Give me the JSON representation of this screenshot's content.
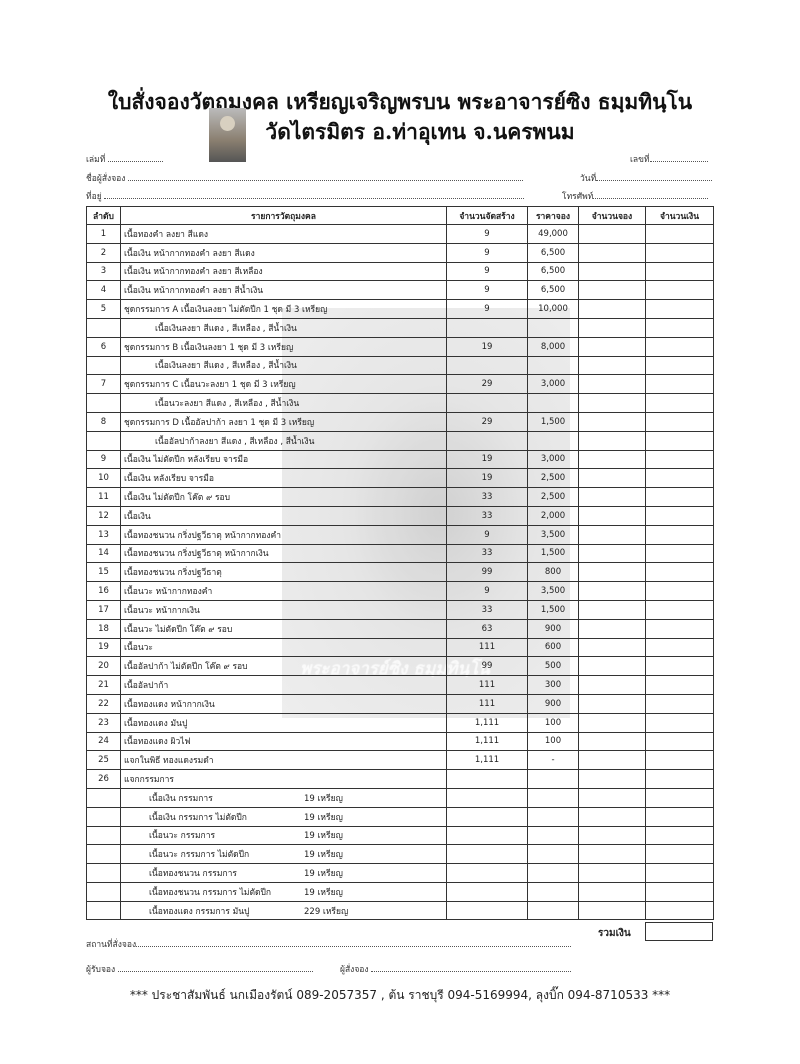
{
  "header": {
    "title_line1": "ใบสั่งจองวัตถุมงคล เหรียญเจริญพรบน พระอาจารย์ซิง ธมฺมทินฺโน",
    "title_line2": "วัดไตรมิตร อ.ท่าอุเทน จ.นครพนม",
    "book_no_label": "เล่มที่",
    "number_label": "เลขที่",
    "orderer_label": "ชื่อผู้สั่งจอง",
    "date_label": "วันที่",
    "address_label": "ที่อยู่",
    "phone_label": "โทรศัพท์"
  },
  "watermark": "พระอาจารย์ซิง ธมฺมทินฺโน",
  "table": {
    "columns": [
      "ลำดับ",
      "รายการวัตถุมงคล",
      "จำนวนจัดสร้าง",
      "ราคาจอง",
      "จำนวนจอง",
      "จำนวนเงิน"
    ],
    "rows": [
      {
        "no": "1",
        "item": "เนื้อทองคำ ลงยา สีแดง",
        "qty": "9",
        "price": "49,000"
      },
      {
        "no": "2",
        "item": "เนื้อเงิน หน้ากากทองคำ ลงยา สีแดง",
        "qty": "9",
        "price": "6,500"
      },
      {
        "no": "3",
        "item": "เนื้อเงิน หน้ากากทองคำ ลงยา สีเหลือง",
        "qty": "9",
        "price": "6,500"
      },
      {
        "no": "4",
        "item": "เนื้อเงิน หน้ากากทองคำ ลงยา สีน้ำเงิน",
        "qty": "9",
        "price": "6,500"
      },
      {
        "no": "5",
        "item": "ชุดกรรมการ A เนื้อเงินลงยา ไม่ตัดปีก 1 ชุด มี 3 เหรียญ",
        "qty": "9",
        "price": "10,000"
      },
      {
        "no": "",
        "item": "เนื้อเงินลงยา สีแดง , สีเหลือง , สีน้ำเงิน",
        "qty": "",
        "price": "",
        "type": "sub"
      },
      {
        "no": "6",
        "item": "ชุดกรรมการ B เนื้อเงินลงยา  1 ชุด มี 3 เหรียญ",
        "qty": "19",
        "price": "8,000"
      },
      {
        "no": "",
        "item": "เนื้อเงินลงยา สีแดง , สีเหลือง , สีน้ำเงิน",
        "qty": "",
        "price": "",
        "type": "sub"
      },
      {
        "no": "7",
        "item": "ชุดกรรมการ C เนื้อนวะลงยา  1 ชุด มี 3 เหรียญ",
        "qty": "29",
        "price": "3,000"
      },
      {
        "no": "",
        "item": "เนื้อนวะลงยา สีแดง , สีเหลือง , สีน้ำเงิน",
        "qty": "",
        "price": "",
        "type": "sub"
      },
      {
        "no": "8",
        "item": "ชุดกรรมการ D เนื้ออัลปาก้า ลงยา 1 ชุด มี 3 เหรียญ",
        "qty": "29",
        "price": "1,500"
      },
      {
        "no": "",
        "item": "เนื้ออัลปาก้าลงยา สีแดง , สีเหลือง , สีน้ำเงิน",
        "qty": "",
        "price": "",
        "type": "sub"
      },
      {
        "no": "9",
        "item": "เนื้อเงิน ไม่ตัดปีก หลังเรียบ จารมือ",
        "qty": "19",
        "price": "3,000"
      },
      {
        "no": "10",
        "item": "เนื้อเงิน หลังเรียบ จารมือ",
        "qty": "19",
        "price": "2,500"
      },
      {
        "no": "11",
        "item": "เนื้อเงิน ไม่ตัดปีก โค๊ต ๙ รอบ",
        "qty": "33",
        "price": "2,500"
      },
      {
        "no": "12",
        "item": "เนื้อเงิน",
        "qty": "33",
        "price": "2,000"
      },
      {
        "no": "13",
        "item": "เนื้อทองชนวน กริ่งปฐวีธาตุ หน้ากากทองคำ",
        "qty": "9",
        "price": "3,500"
      },
      {
        "no": "14",
        "item": "เนื้อทองชนวน กริ่งปฐวีธาตุ หน้ากากเงิน",
        "qty": "33",
        "price": "1,500"
      },
      {
        "no": "15",
        "item": "เนื้อทองชนวน กริ่งปฐวีธาตุ",
        "qty": "99",
        "price": "800"
      },
      {
        "no": "16",
        "item": "เนื้อนวะ หน้ากากทองคำ",
        "qty": "9",
        "price": "3,500"
      },
      {
        "no": "17",
        "item": "เนื้อนวะ หน้ากากเงิน",
        "qty": "33",
        "price": "1,500"
      },
      {
        "no": "18",
        "item": "เนื้อนวะ ไม่ตัดปีก โค๊ต ๙ รอบ",
        "qty": "63",
        "price": "900"
      },
      {
        "no": "19",
        "item": "เนื้อนวะ",
        "qty": "111",
        "price": "600"
      },
      {
        "no": "20",
        "item": "เนื้ออัลปาก้า ไม่ตัดปีก โค๊ต ๙ รอบ",
        "qty": "99",
        "price": "500"
      },
      {
        "no": "21",
        "item": "เนื้ออัลปาก้า",
        "qty": "111",
        "price": "300"
      },
      {
        "no": "22",
        "item": "เนื้อทองแดง หน้ากากเงิน",
        "qty": "111",
        "price": "900"
      },
      {
        "no": "23",
        "item": "เนื้อทองแดง มันปู",
        "qty": "1,111",
        "price": "100"
      },
      {
        "no": "24",
        "item": "เนื้อทองแดง ผิวไฟ",
        "qty": "1,111",
        "price": "100"
      },
      {
        "no": "25",
        "item": "แจกในพิธี ทองแดงรมดำ",
        "qty": "1,111",
        "price": "-"
      },
      {
        "no": "26",
        "item": "แจกกรรมการ",
        "qty": "",
        "price": ""
      },
      {
        "no": "",
        "item": "เนื้อเงิน กรรมการ",
        "count": "19 เหรียญ",
        "qty": "",
        "price": "",
        "type": "com"
      },
      {
        "no": "",
        "item": "เนื้อเงิน กรรมการ ไม่ตัดปีก",
        "count": "19 เหรียญ",
        "qty": "",
        "price": "",
        "type": "com"
      },
      {
        "no": "",
        "item": "เนื้อนวะ กรรมการ",
        "count": "19 เหรียญ",
        "qty": "",
        "price": "",
        "type": "com"
      },
      {
        "no": "",
        "item": "เนื้อนวะ กรรมการ ไม่ตัดปีก",
        "count": "19 เหรียญ",
        "qty": "",
        "price": "",
        "type": "com"
      },
      {
        "no": "",
        "item": "เนื้อทองชนวน กรรมการ",
        "count": "19 เหรียญ",
        "qty": "",
        "price": "",
        "type": "com"
      },
      {
        "no": "",
        "item": "เนื้อทองชนวน กรรมการ ไม่ตัดปีก",
        "count": "19 เหรียญ",
        "qty": "",
        "price": "",
        "type": "com"
      },
      {
        "no": "",
        "item": "เนื้อทองแดง กรรมการ มันปู",
        "count": "229 เหรียญ",
        "qty": "",
        "price": "",
        "type": "com"
      }
    ]
  },
  "totals": {
    "label": "รวมเงิน"
  },
  "bottom": {
    "place_label": "สถานที่สั่งจอง",
    "receiver_label": "ผู้รับจอง",
    "orderer_label": "ผู้สั่งจอง",
    "contact": "*** ประชาสัมพันธ์ นกเมืองรัตน์ 089-2057357 , ต้น ราชบุรี 094-5169994, ลุงบิ๊ก 094-8710533 ***"
  }
}
